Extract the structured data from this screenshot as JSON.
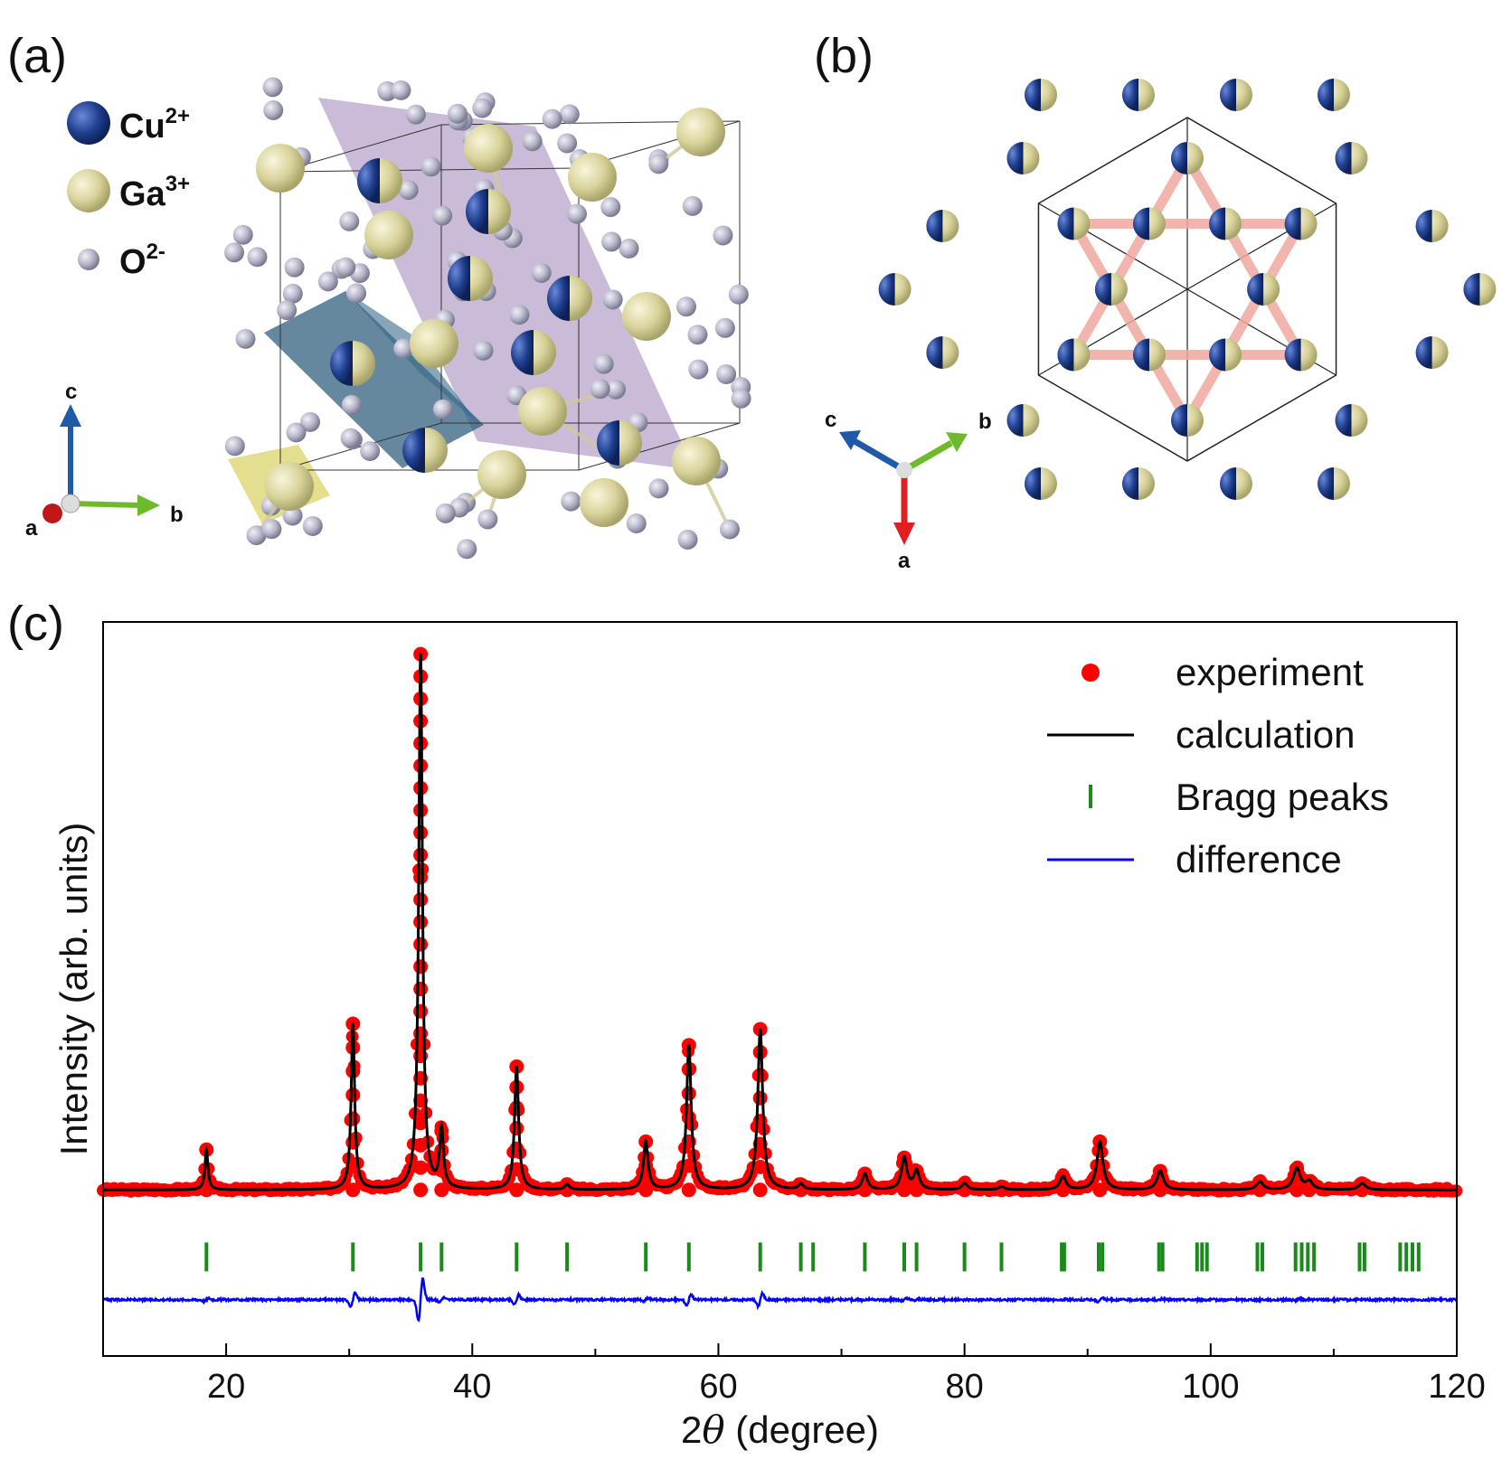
{
  "panels": {
    "a": {
      "label": "(a)",
      "legend": [
        {
          "name": "Cu",
          "charge": "2+",
          "color": "#1f3f8f"
        },
        {
          "name": "Ga",
          "charge": "3+",
          "color": "#d8d39a"
        },
        {
          "name": "O",
          "charge": "2-",
          "color": "#b4b4c8"
        }
      ],
      "axes": {
        "c": "c",
        "b": "b",
        "a": "a"
      }
    },
    "b": {
      "label": "(b)",
      "axes": {
        "c": "c",
        "b": "b",
        "a": "a"
      }
    },
    "c": {
      "label": "(c)"
    }
  },
  "colors": {
    "cu": "#1f3f8f",
    "ga": "#d8d39a",
    "o": "#b4b4c8",
    "kagome": "#f0a8a0",
    "experiment": "#ff0000",
    "calculation": "#000000",
    "bragg": "#1a8a1a",
    "difference": "#0000ff",
    "axis_red": "#e02020",
    "axis_green": "#6fba2c",
    "axis_blue": "#1f5aa8"
  },
  "chart_data": {
    "type": "line",
    "title": "",
    "xlabel_prefix": "2",
    "xlabel_symbol": "θ",
    "xlabel_suffix": " (degree)",
    "ylabel": "Intensity (arb. units)",
    "xlim": [
      10,
      120
    ],
    "xticks": [
      20,
      40,
      60,
      80,
      100,
      120
    ],
    "xtick_labels": [
      "20",
      "40",
      "60",
      "80",
      "100",
      "120"
    ],
    "ylim": [
      -0.3,
      1.07
    ],
    "baseline": 0.01,
    "difference_offset": -0.195,
    "bragg_level": -0.115,
    "peaks": [
      {
        "x": 18.4,
        "h": 0.075
      },
      {
        "x": 30.3,
        "h": 0.31
      },
      {
        "x": 35.8,
        "h": 1.0
      },
      {
        "x": 37.5,
        "h": 0.11
      },
      {
        "x": 43.6,
        "h": 0.23
      },
      {
        "x": 47.7,
        "h": 0.01
      },
      {
        "x": 54.1,
        "h": 0.09
      },
      {
        "x": 57.6,
        "h": 0.27
      },
      {
        "x": 63.4,
        "h": 0.3
      },
      {
        "x": 66.7,
        "h": 0.01
      },
      {
        "x": 71.9,
        "h": 0.03
      },
      {
        "x": 75.1,
        "h": 0.06
      },
      {
        "x": 76.1,
        "h": 0.035
      },
      {
        "x": 80.0,
        "h": 0.012
      },
      {
        "x": 83.0,
        "h": 0.006
      },
      {
        "x": 88.0,
        "h": 0.025
      },
      {
        "x": 91.0,
        "h": 0.09
      },
      {
        "x": 95.9,
        "h": 0.035
      },
      {
        "x": 104.0,
        "h": 0.015
      },
      {
        "x": 107.0,
        "h": 0.04
      },
      {
        "x": 108.0,
        "h": 0.015
      },
      {
        "x": 112.3,
        "h": 0.012
      }
    ],
    "bragg_positions": [
      18.4,
      30.3,
      35.8,
      37.5,
      43.6,
      47.7,
      54.1,
      57.6,
      63.4,
      66.7,
      67.7,
      71.9,
      75.1,
      76.1,
      80.0,
      83.0,
      87.9,
      88.1,
      90.9,
      91.2,
      95.8,
      96.1,
      98.9,
      99.3,
      99.7,
      103.8,
      104.2,
      106.9,
      107.4,
      107.9,
      108.4,
      112.1,
      112.5,
      115.4,
      115.9,
      116.4,
      116.9
    ],
    "legend": [
      {
        "label": "experiment",
        "style": "dot"
      },
      {
        "label": "calculation",
        "style": "line"
      },
      {
        "label": "Bragg peaks",
        "style": "bar"
      },
      {
        "label": "difference",
        "style": "line"
      }
    ],
    "legend_position": "top-right",
    "grid": false
  }
}
